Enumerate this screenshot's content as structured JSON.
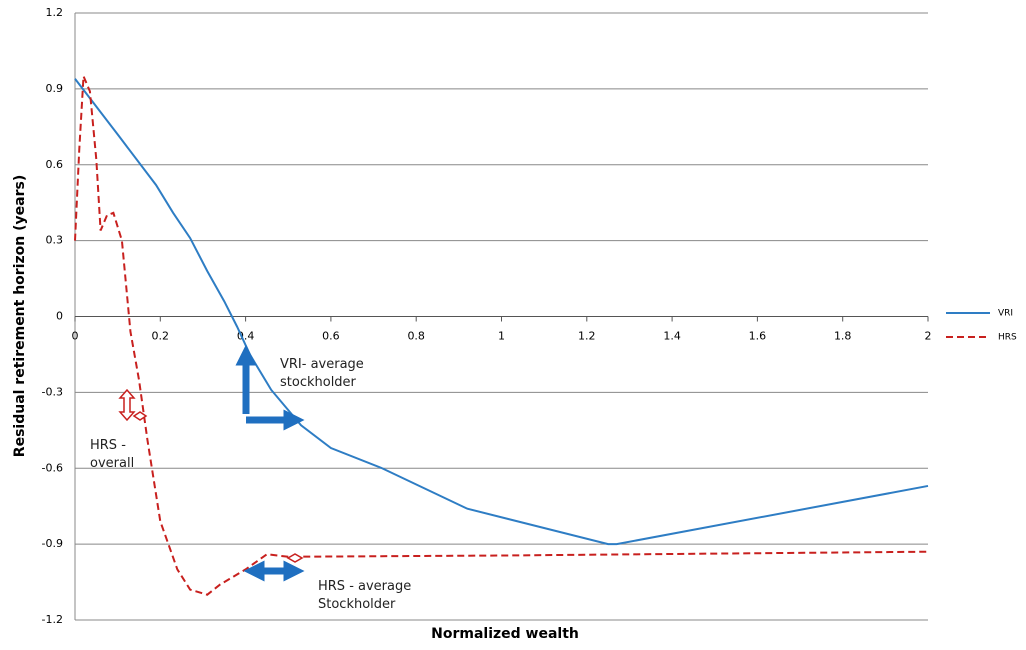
{
  "chart_data": {
    "type": "line",
    "x_label": "Normalized wealth",
    "y_label": "Residual retirement horizon (years)",
    "xlim": [
      0,
      2
    ],
    "xticks": [
      0,
      0.2,
      0.4,
      0.6,
      0.8,
      1,
      1.2,
      1.4,
      1.6,
      1.8,
      2
    ],
    "ylim": [
      -1.2,
      1.2
    ],
    "yticks": [
      1.2,
      0.9,
      0.6,
      0.3,
      0,
      -0.3,
      -0.6,
      -0.9,
      -1.2
    ],
    "grid": true,
    "legend": "right",
    "series": [
      {
        "name": "VRI",
        "color": "#2e7dc4",
        "dash": false,
        "x": [
          0,
          0.1,
          0.19,
          0.23,
          0.27,
          0.31,
          0.35,
          0.38,
          0.41,
          0.46,
          0.53,
          0.6,
          0.72,
          0.92,
          1.25,
          1.27,
          2
        ],
        "values": [
          0.94,
          0.72,
          0.52,
          0.41,
          0.31,
          0.18,
          0.06,
          -0.04,
          -0.15,
          -0.29,
          -0.43,
          -0.52,
          -0.6,
          -0.76,
          -0.9,
          -0.9,
          -0.67
        ]
      },
      {
        "name": "HRS",
        "color": "#c8201e",
        "dash": true,
        "x": [
          0,
          0.01,
          0.02,
          0.035,
          0.05,
          0.06,
          0.075,
          0.09,
          0.11,
          0.13,
          0.15,
          0.17,
          0.2,
          0.24,
          0.27,
          0.31,
          0.34,
          0.4,
          0.45,
          0.5,
          1,
          2
        ],
        "values": [
          0.3,
          0.66,
          0.95,
          0.89,
          0.62,
          0.34,
          0.4,
          0.41,
          0.3,
          -0.06,
          -0.25,
          -0.49,
          -0.81,
          -1.0,
          -1.08,
          -1.1,
          -1.06,
          -1.0,
          -0.94,
          -0.95,
          -0.945,
          -0.93
        ]
      }
    ],
    "annotations": [
      {
        "lines": [
          "VRI- average",
          "stockholder"
        ]
      },
      {
        "lines": [
          "HRS -",
          "overall"
        ]
      },
      {
        "lines": [
          "HRS - average",
          "Stockholder"
        ]
      }
    ]
  }
}
